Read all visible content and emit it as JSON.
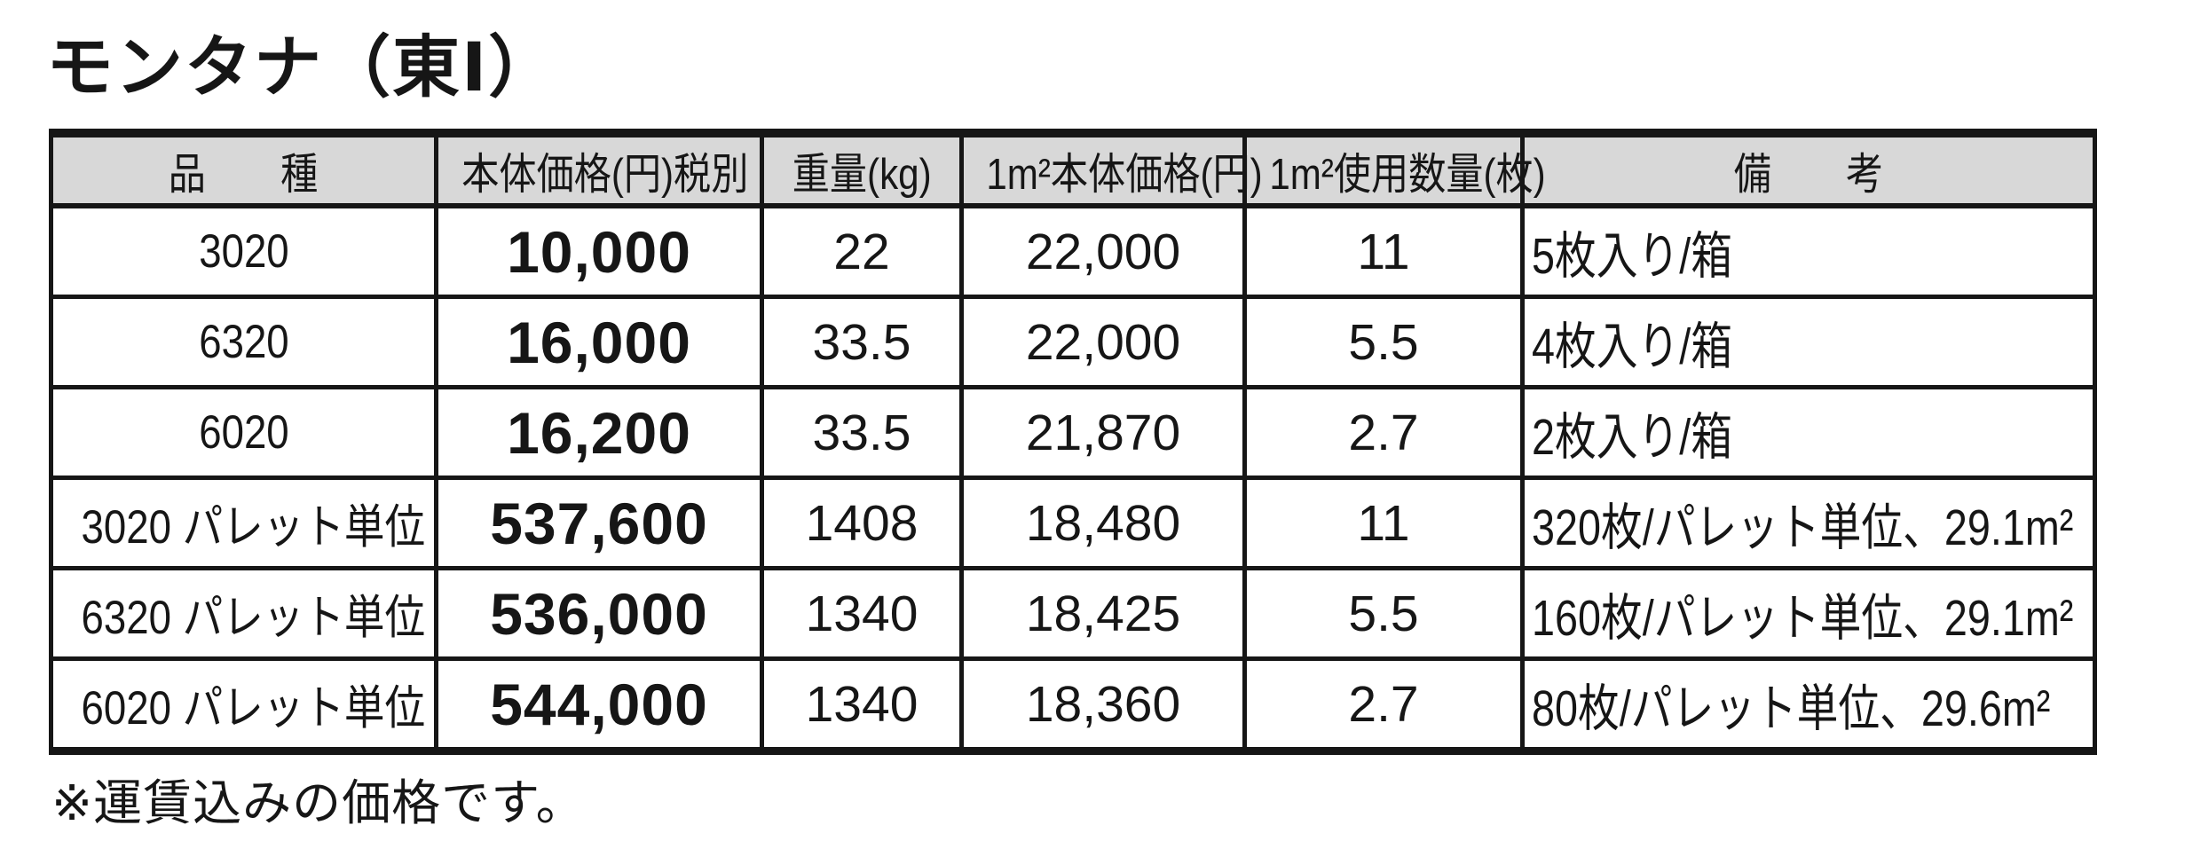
{
  "title": "モンタナ（東Ⅰ）",
  "colors": {
    "header_bg": "#d8d8d8",
    "border": "#161616",
    "text": "#161616"
  },
  "table": {
    "headers": [
      "品　　種",
      "本体価格(円)税別",
      "重量(kg)",
      "1m²本体価格(円)",
      "1m²使用数量(枚)",
      "備　　考"
    ],
    "rows": [
      {
        "kind": "3020",
        "price": "10,000",
        "weight": "22",
        "price_per_m2": "22,000",
        "qty_per_m2": "11",
        "remarks": "5枚入り/箱"
      },
      {
        "kind": "6320",
        "price": "16,000",
        "weight": "33.5",
        "price_per_m2": "22,000",
        "qty_per_m2": "5.5",
        "remarks": "4枚入り/箱"
      },
      {
        "kind": "6020",
        "price": "16,200",
        "weight": "33.5",
        "price_per_m2": "21,870",
        "qty_per_m2": "2.7",
        "remarks": "2枚入り/箱"
      },
      {
        "kind": "3020 パレット単位",
        "price": "537,600",
        "weight": "1408",
        "price_per_m2": "18,480",
        "qty_per_m2": "11",
        "remarks": "320枚/パレット単位、29.1m²"
      },
      {
        "kind": "6320 パレット単位",
        "price": "536,000",
        "weight": "1340",
        "price_per_m2": "18,425",
        "qty_per_m2": "5.5",
        "remarks": "160枚/パレット単位、29.1m²"
      },
      {
        "kind": "6020 パレット単位",
        "price": "544,000",
        "weight": "1340",
        "price_per_m2": "18,360",
        "qty_per_m2": "2.7",
        "remarks": "80枚/パレット単位、29.6m²"
      }
    ]
  },
  "footnote": "※運賃込みの価格です。"
}
